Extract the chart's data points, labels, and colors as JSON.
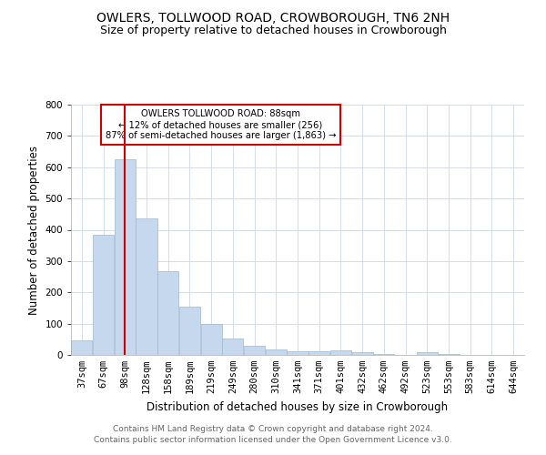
{
  "title": "OWLERS, TOLLWOOD ROAD, CROWBOROUGH, TN6 2NH",
  "subtitle": "Size of property relative to detached houses in Crowborough",
  "xlabel": "Distribution of detached houses by size in Crowborough",
  "ylabel": "Number of detached properties",
  "categories": [
    "37sqm",
    "67sqm",
    "98sqm",
    "128sqm",
    "158sqm",
    "189sqm",
    "219sqm",
    "249sqm",
    "280sqm",
    "310sqm",
    "341sqm",
    "371sqm",
    "401sqm",
    "432sqm",
    "462sqm",
    "492sqm",
    "523sqm",
    "553sqm",
    "583sqm",
    "614sqm",
    "644sqm"
  ],
  "values": [
    48,
    383,
    625,
    435,
    268,
    155,
    98,
    53,
    30,
    17,
    11,
    11,
    15,
    8,
    3,
    0,
    8,
    3,
    0,
    0,
    0
  ],
  "bar_color": "#c5d8ed",
  "bar_edge_color": "#a0b8d0",
  "vline_x_index": 2,
  "vline_color": "#cc0000",
  "annotation_text": "OWLERS TOLLWOOD ROAD: 88sqm\n← 12% of detached houses are smaller (256)\n87% of semi-detached houses are larger (1,863) →",
  "annotation_box_color": "#ffffff",
  "annotation_box_edge": "#cc0000",
  "ylim": [
    0,
    800
  ],
  "yticks": [
    0,
    100,
    200,
    300,
    400,
    500,
    600,
    700,
    800
  ],
  "footer": "Contains HM Land Registry data © Crown copyright and database right 2024.\nContains public sector information licensed under the Open Government Licence v3.0.",
  "title_fontsize": 10,
  "subtitle_fontsize": 9,
  "axis_label_fontsize": 8.5,
  "tick_fontsize": 7.5,
  "footer_fontsize": 6.5,
  "background_color": "#ffffff",
  "grid_color": "#ccd9e8"
}
